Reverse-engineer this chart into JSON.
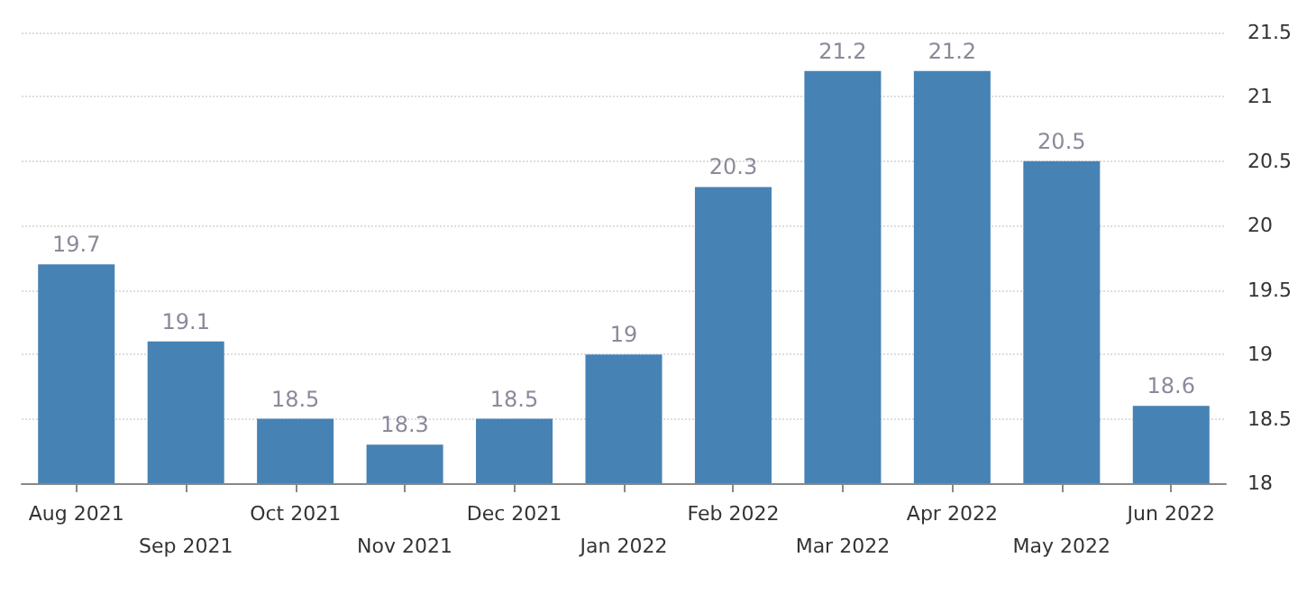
{
  "chart_data": {
    "type": "bar",
    "categories": [
      "Aug 2021",
      "Sep 2021",
      "Oct 2021",
      "Nov 2021",
      "Dec 2021",
      "Jan 2022",
      "Feb 2022",
      "Mar 2022",
      "Apr 2022",
      "May 2022",
      "Jun 2022"
    ],
    "values": [
      19.7,
      19.1,
      18.5,
      18.3,
      18.5,
      19,
      20.3,
      21.2,
      21.2,
      20.5,
      18.6
    ],
    "color": "#4682b4",
    "ylim": [
      18,
      21.5
    ],
    "yticks": [
      18,
      18.5,
      19,
      19.5,
      20,
      20.5,
      21,
      21.5
    ],
    "grid": "y",
    "data_labels": true
  }
}
